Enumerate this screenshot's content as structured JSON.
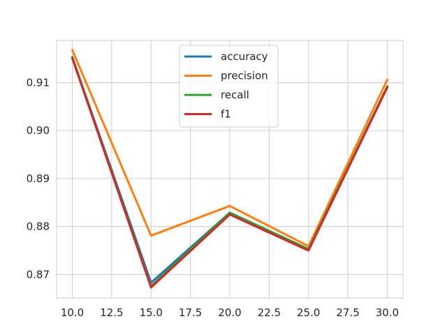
{
  "chart_data": {
    "type": "line",
    "title": "",
    "xlabel": "",
    "ylabel": "",
    "x": [
      10,
      15,
      20,
      25,
      30
    ],
    "xlim": [
      9.0,
      31.0
    ],
    "ylim": [
      0.8651,
      0.9188
    ],
    "xticks": [
      10.0,
      12.5,
      15.0,
      17.5,
      20.0,
      22.5,
      25.0,
      27.5,
      30.0
    ],
    "xtick_labels": [
      "10.0",
      "12.5",
      "15.0",
      "17.5",
      "20.0",
      "22.5",
      "25.0",
      "27.5",
      "30.0"
    ],
    "yticks": [
      0.87,
      0.88,
      0.89,
      0.9,
      0.91
    ],
    "ytick_labels": [
      "0.87",
      "0.88",
      "0.89",
      "0.90",
      "0.91"
    ],
    "grid": true,
    "legend_position": "top-center",
    "series": [
      {
        "name": "accuracy",
        "color": "#1f77b4",
        "values": [
          0.9153,
          0.8683,
          0.8829,
          0.8753,
          0.9092
        ]
      },
      {
        "name": "precision",
        "color": "#ff7f0e",
        "values": [
          0.9168,
          0.8781,
          0.8843,
          0.8759,
          0.9106
        ]
      },
      {
        "name": "recall",
        "color": "#2ca02c",
        "values": [
          0.9153,
          0.8676,
          0.8829,
          0.8753,
          0.9092
        ]
      },
      {
        "name": "f1",
        "color": "#d62728",
        "values": [
          0.9151,
          0.8673,
          0.8825,
          0.875,
          0.909
        ]
      }
    ]
  }
}
